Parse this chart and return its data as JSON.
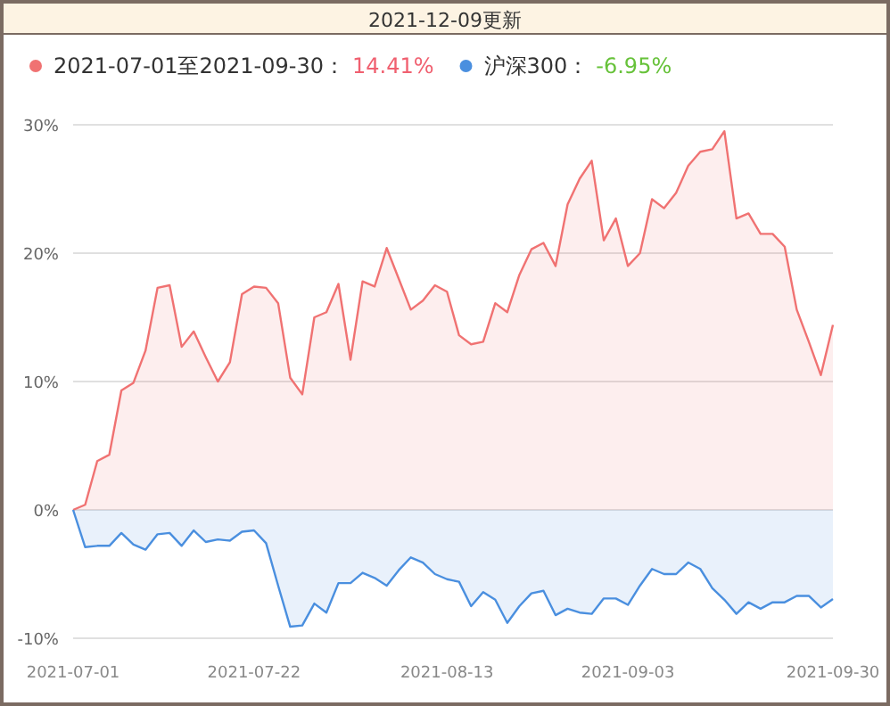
{
  "chart_data": {
    "type": "area",
    "title": "2021-12-09更新",
    "categories": [
      "2021-07-01",
      null,
      null,
      null,
      null,
      null,
      null,
      null,
      null,
      null,
      null,
      null,
      null,
      null,
      null,
      "2021-07-22",
      null,
      null,
      null,
      null,
      null,
      null,
      null,
      null,
      null,
      null,
      null,
      null,
      null,
      null,
      null,
      "2021-08-13",
      null,
      null,
      null,
      null,
      null,
      null,
      null,
      null,
      null,
      null,
      null,
      null,
      null,
      null,
      "2021-09-03",
      null,
      null,
      null,
      null,
      null,
      null,
      null,
      null,
      null,
      null,
      null,
      null,
      null,
      null,
      null,
      null,
      "2021-09-30"
    ],
    "series": [
      {
        "name": "2021-07-01至2021-09-30：",
        "color": "#f07272",
        "values": [
          0,
          0.4,
          3.8,
          4.3,
          9.3,
          9.9,
          12.4,
          17.3,
          17.5,
          12.7,
          13.9,
          11.9,
          10.0,
          11.5,
          16.8,
          17.4,
          17.3,
          16.1,
          10.3,
          9.0,
          15.0,
          15.4,
          17.6,
          11.7,
          17.8,
          17.4,
          20.4,
          18.0,
          15.6,
          16.3,
          17.5,
          17.0,
          13.6,
          12.9,
          13.1,
          16.1,
          15.4,
          18.3,
          20.3,
          20.8,
          19.0,
          23.8,
          25.8,
          27.2,
          21.0,
          22.7,
          19.0,
          20.0,
          24.2,
          23.5,
          24.7,
          26.8,
          27.9,
          28.1,
          29.5,
          22.7,
          23.1,
          21.5,
          21.5,
          20.5,
          15.6,
          13.1,
          10.5,
          14.41
        ]
      },
      {
        "name": "沪深300：",
        "color": "#4a8fdf",
        "values": [
          0,
          -2.9,
          -2.8,
          -2.8,
          -1.8,
          -2.7,
          -3.1,
          -1.9,
          -1.8,
          -2.8,
          -1.6,
          -2.5,
          -2.3,
          -2.4,
          -1.7,
          -1.6,
          -2.6,
          -5.9,
          -9.1,
          -9.0,
          -7.3,
          -8.0,
          -5.7,
          -5.7,
          -4.9,
          -5.3,
          -5.9,
          -4.7,
          -3.7,
          -4.1,
          -5.0,
          -5.4,
          -5.6,
          -7.5,
          -6.4,
          -7.0,
          -8.8,
          -7.5,
          -6.5,
          -6.3,
          -8.2,
          -7.7,
          -8.0,
          -8.1,
          -6.9,
          -6.9,
          -7.4,
          -5.9,
          -4.6,
          -5.0,
          -5.0,
          -4.1,
          -4.6,
          -6.1,
          -7.0,
          -8.1,
          -7.2,
          -7.7,
          -7.2,
          -7.2,
          -6.7,
          -6.7,
          -7.6,
          -6.95
        ]
      }
    ],
    "annotations": [
      "14.41%",
      "-6.95%"
    ],
    "ylim": [
      -10,
      30
    ],
    "yticks": [
      {
        "value": -10,
        "label": "-10%"
      },
      {
        "value": 0,
        "label": "0%"
      },
      {
        "value": 10,
        "label": "10%"
      },
      {
        "value": 20,
        "label": "20%"
      },
      {
        "value": 30,
        "label": "30%"
      }
    ],
    "grid": "y",
    "legend": "top left"
  }
}
